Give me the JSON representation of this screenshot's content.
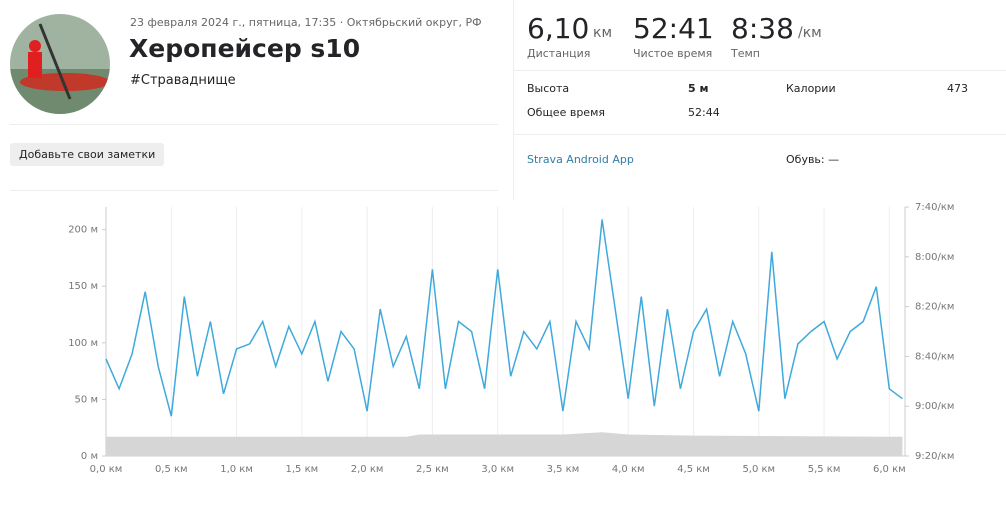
{
  "header": {
    "date": "23 февраля 2024 г., пятница, 17:35 · Октябрьский округ, РФ",
    "title": "Херопейсер s10",
    "tag": "#Страваднище",
    "notes_button": "Добавьте свои заметки"
  },
  "stats": [
    {
      "value": "6,10",
      "unit": "км",
      "label": "Дистанция"
    },
    {
      "value": "52:41",
      "label": "Чистое время"
    },
    {
      "value": "8:38",
      "unit": "/км",
      "label": "Темп"
    }
  ],
  "details": {
    "elevation_label": "Высота",
    "elevation": "5 м",
    "calories_label": "Калории",
    "calories": "473",
    "total_label": "Общее время",
    "total": "52:44",
    "app": "Strava Android App",
    "shoes": "Обувь: —"
  },
  "chart_data": {
    "type": "line",
    "xlim": [
      0,
      6.12
    ],
    "xticks": [
      {
        "value": 0,
        "label": "0,0 км"
      },
      {
        "value": 0.5,
        "label": "0,5 км"
      },
      {
        "value": 1,
        "label": "1,0 км"
      },
      {
        "value": 1.5,
        "label": "1,5 км"
      },
      {
        "value": 2,
        "label": "2,0 км"
      },
      {
        "value": 2.5,
        "label": "2,5 км"
      },
      {
        "value": 3,
        "label": "3,0 км"
      },
      {
        "value": 3.5,
        "label": "3,5 км"
      },
      {
        "value": 4,
        "label": "4,0 км"
      },
      {
        "value": 4.5,
        "label": "4,5 км"
      },
      {
        "value": 5,
        "label": "5,0 км"
      },
      {
        "value": 5.5,
        "label": "5,5 км"
      },
      {
        "value": 6,
        "label": "6,0 км"
      }
    ],
    "ylim": [
      0,
      220
    ],
    "yticks": [
      {
        "value": 0,
        "label": "0 м"
      },
      {
        "value": 50,
        "label": "50 м"
      },
      {
        "value": 100,
        "label": "100 м"
      },
      {
        "value": 150,
        "label": "150 м"
      },
      {
        "value": 200,
        "label": "200 м"
      }
    ],
    "y2lim": [
      560,
      460
    ],
    "y2ticks": [
      {
        "value": 460,
        "label": "7:40/км"
      },
      {
        "value": 480,
        "label": "8:00/км"
      },
      {
        "value": 500,
        "label": "8:20/км"
      },
      {
        "value": 520,
        "label": "8:40/км"
      },
      {
        "value": 540,
        "label": "9:00/км"
      },
      {
        "value": 560,
        "label": "9:20/км"
      }
    ],
    "grid": true,
    "series": [
      {
        "type": "area",
        "color": "#d6d6d6",
        "x": [
          0,
          2.3,
          2.4,
          3.5,
          3.8,
          4.0,
          4.5,
          6.1
        ],
        "values": [
          17,
          17,
          19,
          19,
          21,
          19,
          18,
          17
        ]
      },
      {
        "type": "line",
        "color": "#3fa9dc",
        "axis": "y2",
        "x": [
          0,
          0.1,
          0.2,
          0.3,
          0.4,
          0.5,
          0.6,
          0.7,
          0.8,
          0.9,
          1,
          1.1,
          1.2,
          1.3,
          1.4,
          1.5,
          1.6,
          1.7,
          1.8,
          1.9,
          2,
          2.1,
          2.2,
          2.3,
          2.4,
          2.5,
          2.6,
          2.7,
          2.8,
          2.9,
          3,
          3.1,
          3.2,
          3.3,
          3.4,
          3.5,
          3.6,
          3.7,
          3.8,
          3.9,
          4,
          4.1,
          4.2,
          4.3,
          4.4,
          4.5,
          4.6,
          4.7,
          4.8,
          4.9,
          5,
          5.1,
          5.2,
          5.3,
          5.4,
          5.5,
          5.6,
          5.7,
          5.8,
          5.9,
          6,
          6.1
        ],
        "values": [
          521,
          533,
          519,
          494,
          524,
          544,
          496,
          528,
          506,
          535,
          517,
          515,
          506,
          524,
          508,
          519,
          506,
          530,
          510,
          517,
          542,
          501,
          524,
          512,
          533,
          485,
          533,
          506,
          510,
          533,
          485,
          528,
          510,
          517,
          506,
          542,
          506,
          517,
          465,
          501,
          537,
          496,
          540,
          501,
          533,
          510,
          501,
          528,
          506,
          519,
          542,
          478,
          537,
          515,
          510,
          506,
          521,
          510,
          506,
          492,
          533,
          537
        ]
      }
    ]
  }
}
